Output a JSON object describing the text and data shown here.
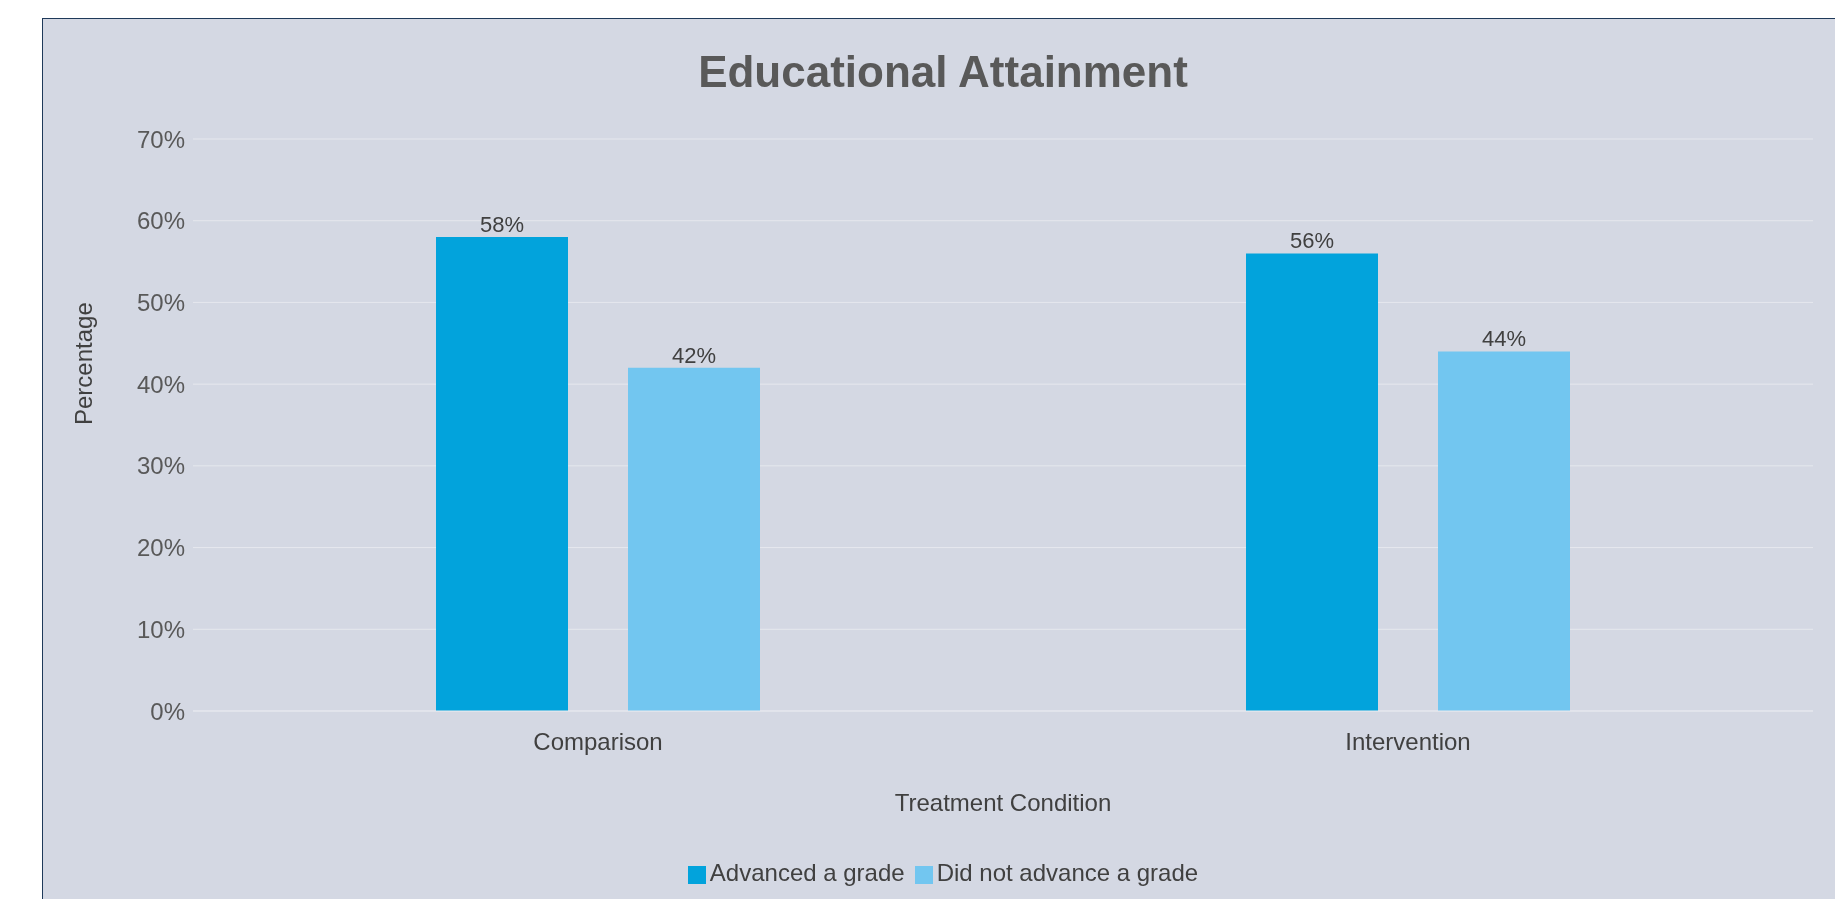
{
  "chart_data": {
    "type": "bar",
    "title": "Educational Attainment",
    "xlabel": "Treatment Condition",
    "ylabel": "Percentage",
    "categories": [
      "Comparison",
      "Intervention"
    ],
    "series": [
      {
        "name": "Advanced a grade",
        "color": "#02a3dc",
        "values": [
          58,
          56
        ]
      },
      {
        "name": "Did not advance a grade",
        "color": "#72c6f0",
        "values": [
          42,
          44
        ]
      }
    ],
    "ylim": [
      0,
      70
    ],
    "yticks": [
      {
        "value": 0,
        "label": "0%"
      },
      {
        "value": 10,
        "label": "10%"
      },
      {
        "value": 20,
        "label": "20%"
      },
      {
        "value": 30,
        "label": "30%"
      },
      {
        "value": 40,
        "label": "40%"
      },
      {
        "value": 50,
        "label": "50%"
      },
      {
        "value": 60,
        "label": "60%"
      },
      {
        "value": 70,
        "label": "70%"
      }
    ],
    "value_labels": [
      [
        "58%",
        "56%"
      ],
      [
        "42%",
        "44%"
      ]
    ],
    "grid": "y",
    "legend": "bottom"
  }
}
